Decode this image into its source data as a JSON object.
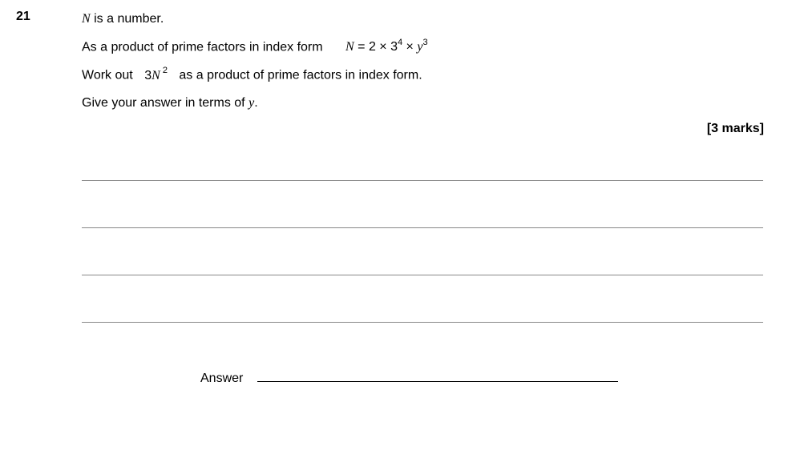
{
  "question": {
    "number": "21",
    "line1_prefix": "",
    "line1_var": "N",
    "line1_rest": " is a number.",
    "line2_prefix": "As a product of prime factors in index form",
    "line2_eqvar": "N",
    "line2_eq_eq": " = 2 × 3",
    "line2_exp1": "4",
    "line2_times": " × ",
    "line2_var2": "y",
    "line2_exp2": "3",
    "line3_prefix": "Work out",
    "line3_coef": "3",
    "line3_var": "N",
    "line3_exp": " 2",
    "line3_rest": "as a product of prime factors in index form.",
    "line4_prefix": "Give your answer in terms of ",
    "line4_var": "y",
    "line4_suffix": ".",
    "marks": "[3 marks]",
    "answer_label": "Answer"
  }
}
